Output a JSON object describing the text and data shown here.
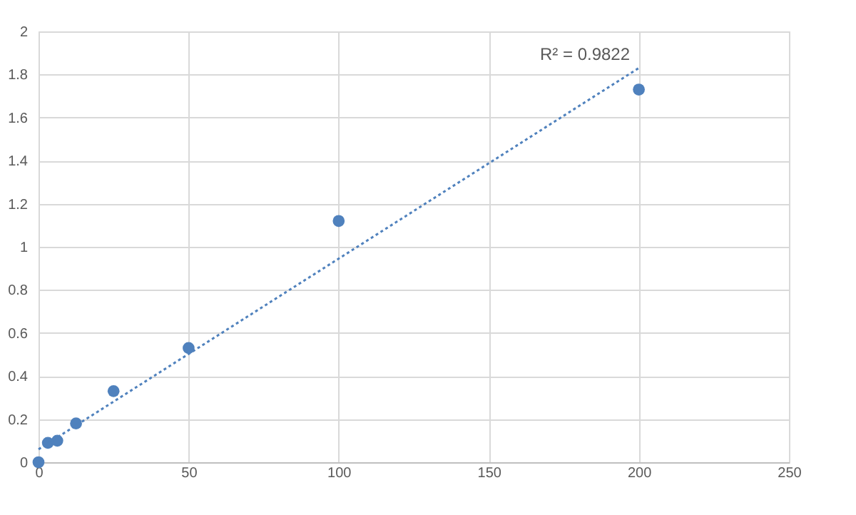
{
  "chart_data": {
    "type": "scatter",
    "series": [
      {
        "color": "#4f81bd",
        "marker": "circle",
        "x": [
          0,
          3.125,
          6.25,
          12.5,
          25,
          50,
          100,
          200
        ],
        "values": [
          0,
          0.09,
          0.1,
          0.18,
          0.33,
          0.53,
          1.12,
          1.73
        ]
      },
      {
        "type": "line",
        "color": "#4f81bd",
        "line_style": "dotted",
        "marker": "none",
        "x": [
          0,
          200
        ],
        "values": [
          0.06,
          1.83
        ]
      }
    ],
    "annotations": [
      "R² = 0.9822"
    ],
    "xlim": [
      0,
      250
    ],
    "xticks": [
      0,
      50,
      100,
      150,
      200,
      250
    ],
    "ylim": [
      0,
      2
    ],
    "yticks": [
      0,
      0.2,
      0.4,
      0.6,
      0.8,
      1,
      1.2,
      1.4,
      1.6,
      1.8,
      2
    ],
    "grid": true
  }
}
